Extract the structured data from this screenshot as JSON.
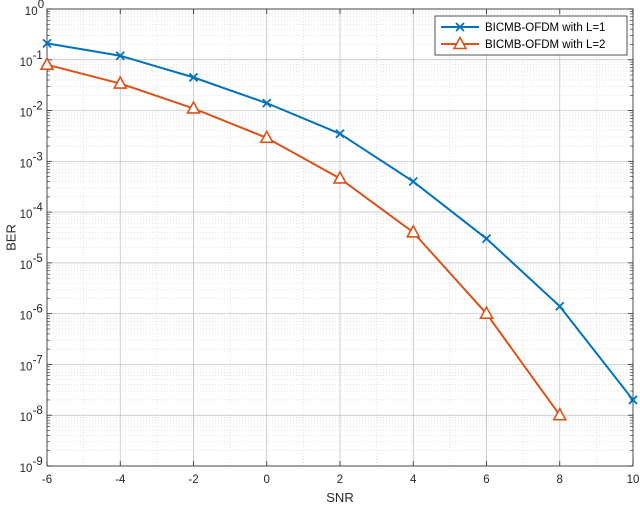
{
  "chart_data": {
    "type": "line",
    "title": "",
    "xlabel": "SNR",
    "ylabel": "BER",
    "xlim": [
      -6,
      10
    ],
    "ylim_exponent": [
      -9,
      0
    ],
    "yscale": "log",
    "grid": true,
    "minor_grid": true,
    "legend_position": "top-right",
    "x_ticks": [
      "-6",
      "-4",
      "-2",
      "0",
      "2",
      "4",
      "6",
      "8",
      "10"
    ],
    "y_tick_base": "10",
    "y_tick_exponents": [
      "0",
      "-1",
      "-2",
      "-3",
      "-4",
      "-5",
      "-6",
      "-7",
      "-8",
      "-9"
    ],
    "series": [
      {
        "name": "BICMB-OFDM with L=1",
        "color": "#0072BD",
        "marker": "x",
        "x": [
          -6,
          -4,
          -2,
          0,
          2,
          4,
          6,
          8,
          10
        ],
        "y": [
          0.21,
          0.12,
          0.045,
          0.014,
          0.0035,
          0.0004,
          3e-05,
          1.4e-06,
          2e-08
        ]
      },
      {
        "name": "BICMB-OFDM with L=2",
        "color": "#D95319",
        "marker": "triangle",
        "x": [
          -6,
          -4,
          -2,
          0,
          2,
          4,
          6,
          8
        ],
        "y": [
          0.08,
          0.034,
          0.011,
          0.0029,
          0.00046,
          4e-05,
          1e-06,
          1e-08
        ]
      }
    ]
  }
}
